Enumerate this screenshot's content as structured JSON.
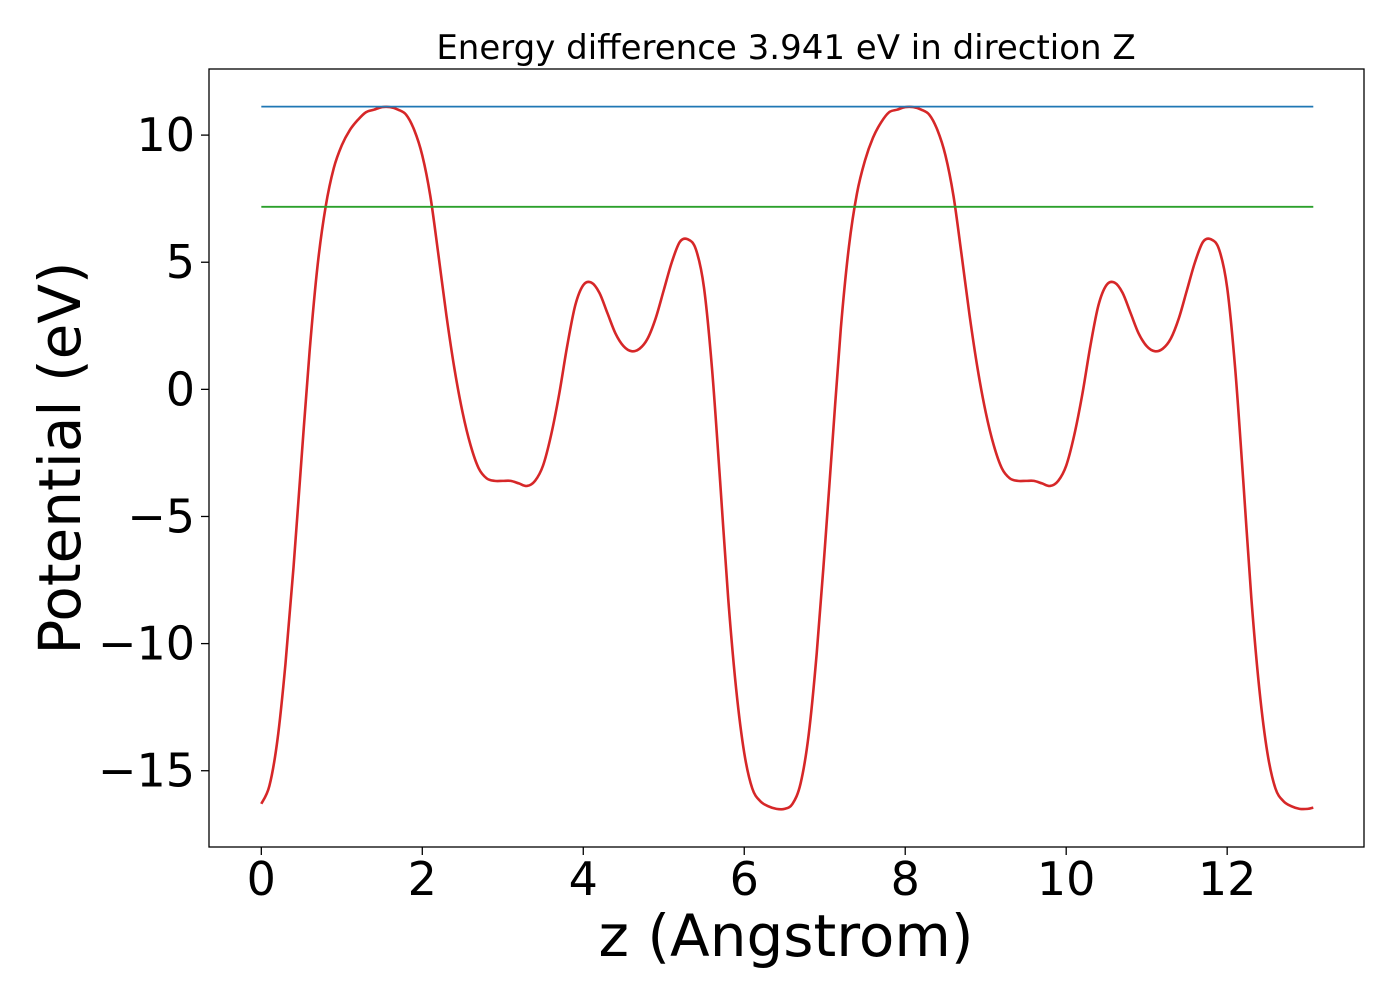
{
  "chart_data": {
    "type": "line",
    "title": "Energy difference 3.941 eV in direction Z",
    "xlabel": "z (Angstrom)",
    "ylabel": "Potential (eV)",
    "xlim": [
      -0.65,
      13.7
    ],
    "ylim": [
      -18.0,
      12.6
    ],
    "xticks": [
      0,
      2,
      4,
      6,
      8,
      10,
      12
    ],
    "xtick_labels": [
      "0",
      "2",
      "4",
      "6",
      "8",
      "10",
      "12"
    ],
    "yticks": [
      10,
      5,
      0,
      -5,
      -10,
      -15
    ],
    "ytick_labels": [
      "10",
      "5",
      "0",
      "−5",
      "−10",
      "−15"
    ],
    "grid": false,
    "legend": "none",
    "series": [
      {
        "color": "#d62728",
        "x": [
          0,
          0.1,
          0.2,
          0.3,
          0.4,
          0.5,
          0.6,
          0.7,
          0.8,
          0.9,
          1.0,
          1.1,
          1.2,
          1.3,
          1.4,
          1.5,
          1.6,
          1.7,
          1.8,
          1.9,
          2.0,
          2.1,
          2.2,
          2.3,
          2.4,
          2.5,
          2.6,
          2.7,
          2.8,
          2.9,
          3.0,
          3.1,
          3.2,
          3.3,
          3.4,
          3.5,
          3.6,
          3.7,
          3.8,
          3.9,
          4.0,
          4.1,
          4.2,
          4.3,
          4.4,
          4.5,
          4.6,
          4.7,
          4.8,
          4.9,
          5.0,
          5.1,
          5.2,
          5.3,
          5.4,
          5.5,
          5.6,
          5.7,
          5.8,
          5.9,
          6.0,
          6.1,
          6.2,
          6.3,
          6.4,
          6.5,
          6.6,
          6.7,
          6.8,
          6.9,
          7.0,
          7.1,
          7.2,
          7.3,
          7.4,
          7.5,
          7.6,
          7.7,
          7.8,
          7.9,
          8.0,
          8.1,
          8.2,
          8.3,
          8.4,
          8.5,
          8.6,
          8.7,
          8.8,
          8.9,
          9.0,
          9.1,
          9.2,
          9.3,
          9.4,
          9.5,
          9.6,
          9.7,
          9.8,
          9.9,
          10.0,
          10.1,
          10.2,
          10.3,
          10.4,
          10.5,
          10.6,
          10.7,
          10.8,
          10.9,
          11.0,
          11.1,
          11.2,
          11.3,
          11.4,
          11.5,
          11.6,
          11.7,
          11.8,
          11.9,
          12.0,
          12.1,
          12.2,
          12.3,
          12.4,
          12.5,
          12.6,
          12.7,
          12.8,
          12.9,
          13.0,
          13.07
        ],
        "y": [
          -16.3,
          -15.6,
          -13.8,
          -10.8,
          -7.0,
          -2.7,
          1.5,
          4.9,
          7.2,
          8.7,
          9.6,
          10.2,
          10.6,
          10.9,
          11.0,
          11.1,
          11.1,
          11.0,
          10.8,
          10.2,
          9.2,
          7.6,
          5.3,
          2.9,
          0.8,
          -0.9,
          -2.2,
          -3.1,
          -3.5,
          -3.6,
          -3.6,
          -3.6,
          -3.7,
          -3.8,
          -3.6,
          -3.0,
          -1.8,
          -0.2,
          1.7,
          3.3,
          4.1,
          4.2,
          3.8,
          3.0,
          2.2,
          1.7,
          1.5,
          1.6,
          2.0,
          2.8,
          3.9,
          5.0,
          5.8,
          5.9,
          5.5,
          4.0,
          0.8,
          -3.6,
          -8.2,
          -11.8,
          -14.3,
          -15.7,
          -16.2,
          -16.4,
          -16.5,
          -16.5,
          -16.3,
          -15.5,
          -13.6,
          -10.4,
          -6.3,
          -1.9,
          2.4,
          5.6,
          7.7,
          9.0,
          9.9,
          10.5,
          10.9,
          11.0,
          11.1,
          11.1,
          11.0,
          10.8,
          10.2,
          9.2,
          7.6,
          5.3,
          2.9,
          0.8,
          -0.9,
          -2.2,
          -3.1,
          -3.5,
          -3.6,
          -3.6,
          -3.6,
          -3.7,
          -3.8,
          -3.6,
          -3.0,
          -1.8,
          -0.2,
          1.7,
          3.3,
          4.1,
          4.2,
          3.8,
          3.0,
          2.2,
          1.7,
          1.5,
          1.6,
          2.0,
          2.8,
          3.9,
          5.0,
          5.8,
          5.9,
          5.5,
          4.0,
          0.8,
          -3.6,
          -8.2,
          -11.8,
          -14.3,
          -15.7,
          -16.2,
          -16.4,
          -16.5,
          -16.5,
          -16.45
        ]
      },
      {
        "color": "#1f77b4",
        "x": [
          0,
          13.07
        ],
        "y": [
          11.12,
          11.12
        ]
      },
      {
        "color": "#2ca02c",
        "x": [
          0,
          13.07
        ],
        "y": [
          7.18,
          7.18
        ]
      }
    ]
  }
}
